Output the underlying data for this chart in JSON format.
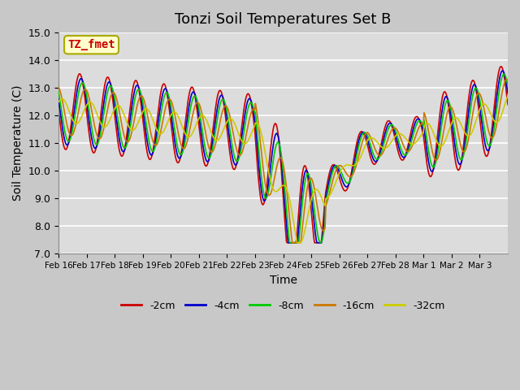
{
  "title": "Tonzi Soil Temperatures Set B",
  "xlabel": "Time",
  "ylabel": "Soil Temperature (C)",
  "ylim": [
    7.0,
    15.0
  ],
  "yticks": [
    7.0,
    8.0,
    9.0,
    10.0,
    11.0,
    12.0,
    13.0,
    14.0,
    15.0
  ],
  "xtick_labels": [
    "Feb 16",
    "Feb 17",
    "Feb 18",
    "Feb 19",
    "Feb 20",
    "Feb 21",
    "Feb 22",
    "Feb 23",
    "Feb 24",
    "Feb 25",
    "Feb 26",
    "Feb 27",
    "Feb 28",
    "Mar 1",
    "Mar 2",
    "Mar 3"
  ],
  "series_labels": [
    "-2cm",
    "-4cm",
    "-8cm",
    "-16cm",
    "-32cm"
  ],
  "series_colors": [
    "#cc0000",
    "#0000cc",
    "#00cc00",
    "#cc7700",
    "#cccc00"
  ],
  "annotation_text": "TZ_fmet",
  "annotation_color": "#cc0000",
  "annotation_box_facecolor": "#ffffcc",
  "annotation_box_edgecolor": "#aaaa00",
  "fig_facecolor": "#c8c8c8",
  "ax_facecolor": "#dcdcdc",
  "grid_color": "#ffffff",
  "title_fontsize": 13,
  "n_days": 16,
  "pts_per_day": 48
}
